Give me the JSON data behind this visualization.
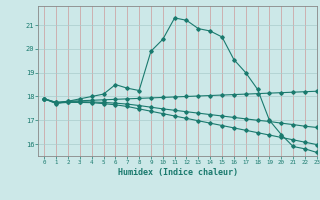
{
  "xlabel": "Humidex (Indice chaleur)",
  "background_color": "#cce8e8",
  "grid_color": "#aacccc",
  "line_color": "#1a7a6e",
  "xlim": [
    -0.5,
    23
  ],
  "ylim": [
    15.5,
    21.8
  ],
  "yticks": [
    16,
    17,
    18,
    19,
    20,
    21
  ],
  "xticks": [
    0,
    1,
    2,
    3,
    4,
    5,
    6,
    7,
    8,
    9,
    10,
    11,
    12,
    13,
    14,
    15,
    16,
    17,
    18,
    19,
    20,
    21,
    22,
    23
  ],
  "series": [
    {
      "x": [
        0,
        1,
        2,
        3,
        4,
        5,
        6,
        7,
        8,
        9,
        10,
        11,
        12,
        13,
        14,
        15,
        16,
        17,
        18,
        19,
        20,
        21,
        22,
        23
      ],
      "y": [
        17.9,
        17.7,
        17.8,
        17.9,
        18.0,
        18.1,
        18.5,
        18.35,
        18.25,
        19.9,
        20.4,
        21.3,
        21.2,
        20.85,
        20.75,
        20.5,
        19.55,
        19.0,
        18.3,
        17.0,
        16.4,
        15.9,
        15.8,
        15.65
      ]
    },
    {
      "x": [
        0,
        1,
        2,
        3,
        4,
        5,
        6,
        7,
        8,
        9,
        10,
        11,
        12,
        13,
        14,
        15,
        16,
        17,
        18,
        19,
        20,
        21,
        22,
        23
      ],
      "y": [
        17.9,
        17.75,
        17.8,
        17.82,
        17.84,
        17.86,
        17.88,
        17.9,
        17.92,
        17.94,
        17.96,
        17.98,
        18.0,
        18.02,
        18.04,
        18.06,
        18.08,
        18.1,
        18.12,
        18.14,
        18.16,
        18.18,
        18.2,
        18.22
      ]
    },
    {
      "x": [
        0,
        1,
        2,
        3,
        4,
        5,
        6,
        7,
        8,
        9,
        10,
        11,
        12,
        13,
        14,
        15,
        16,
        17,
        18,
        19,
        20,
        21,
        22,
        23
      ],
      "y": [
        17.9,
        17.75,
        17.78,
        17.78,
        17.77,
        17.75,
        17.72,
        17.68,
        17.62,
        17.55,
        17.48,
        17.42,
        17.36,
        17.3,
        17.24,
        17.18,
        17.12,
        17.06,
        17.0,
        16.95,
        16.88,
        16.82,
        16.75,
        16.7
      ]
    },
    {
      "x": [
        0,
        1,
        2,
        3,
        4,
        5,
        6,
        7,
        8,
        9,
        10,
        11,
        12,
        13,
        14,
        15,
        16,
        17,
        18,
        19,
        20,
        21,
        22,
        23
      ],
      "y": [
        17.9,
        17.72,
        17.75,
        17.75,
        17.74,
        17.7,
        17.65,
        17.58,
        17.48,
        17.38,
        17.28,
        17.18,
        17.08,
        16.98,
        16.88,
        16.78,
        16.68,
        16.58,
        16.48,
        16.38,
        16.28,
        16.18,
        16.08,
        15.98
      ]
    }
  ]
}
